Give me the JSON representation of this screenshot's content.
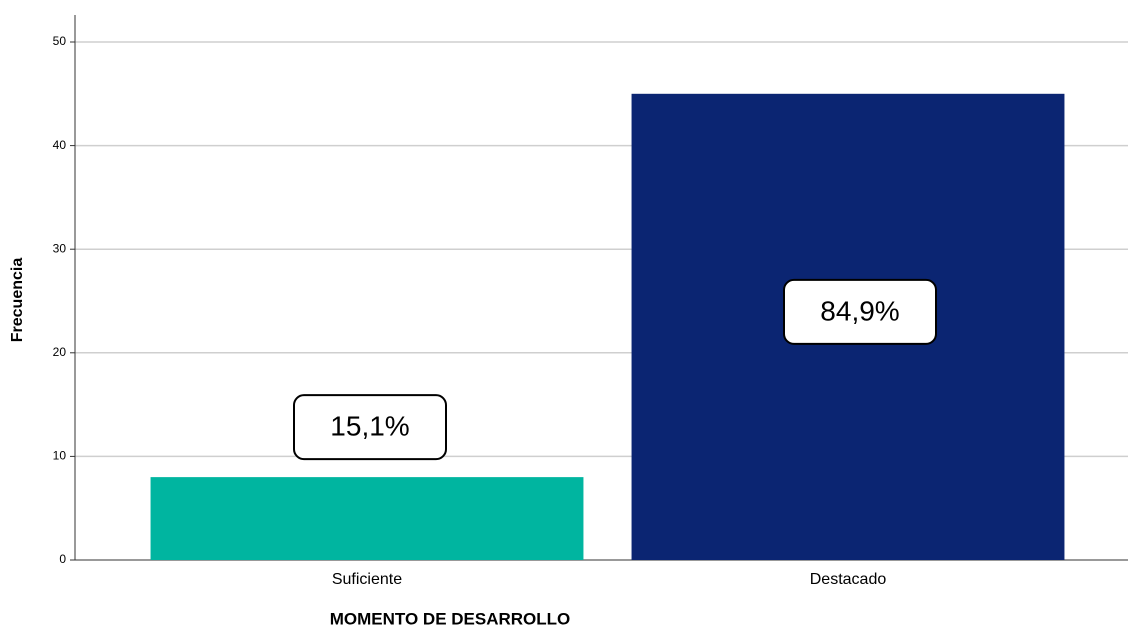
{
  "chart_data": {
    "type": "bar",
    "categories": [
      "Suficiente",
      "Destacado"
    ],
    "values": [
      8,
      45
    ],
    "colors": [
      "#00b5a0",
      "#0b2572"
    ],
    "annotations": [
      "15,1%",
      "84,9%"
    ],
    "x_label": "MOMENTO DE DESARROLLO",
    "y_label": "Frecuencia",
    "ylim": [
      0,
      50
    ],
    "yticks": [
      0,
      10,
      20,
      30,
      40,
      50
    ],
    "grid": true
  }
}
